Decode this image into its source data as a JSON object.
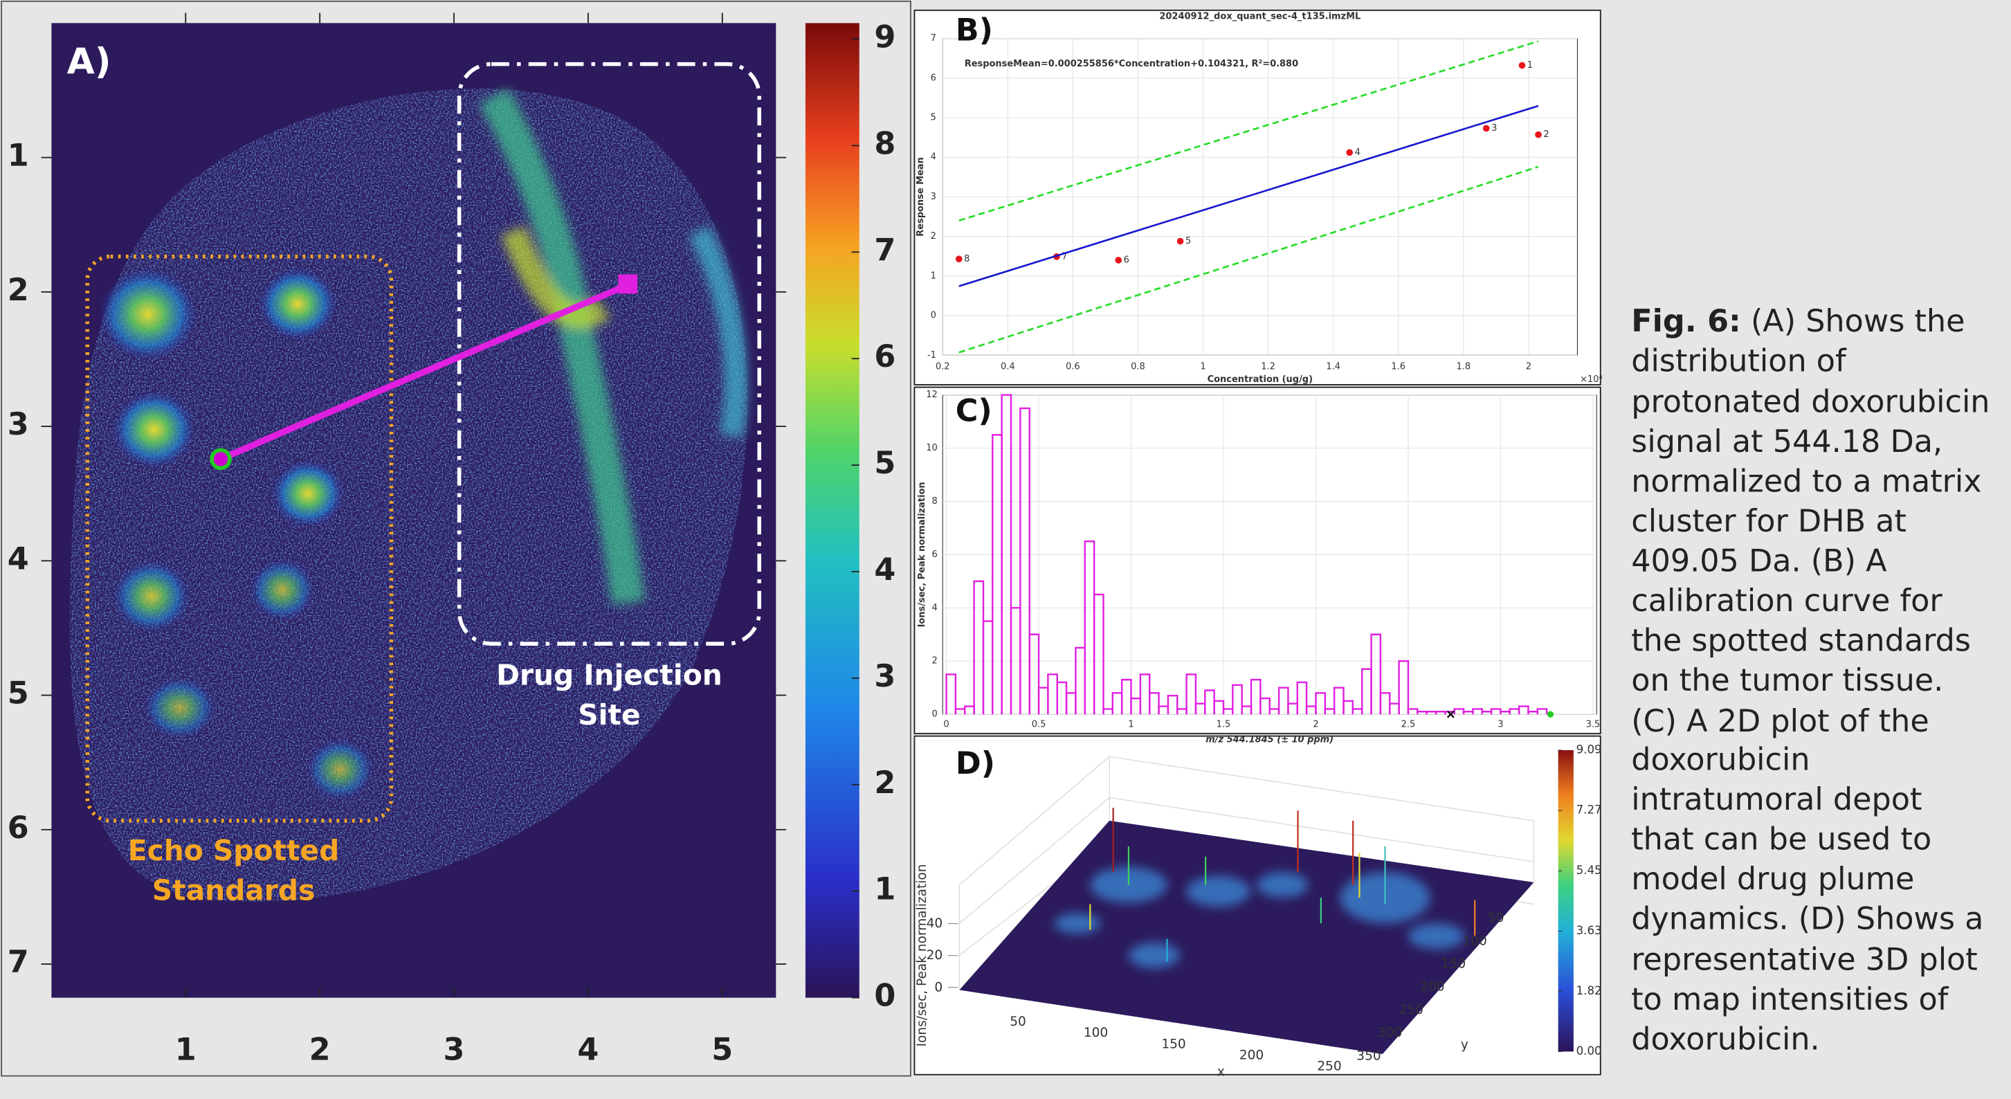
{
  "chart_data": [
    {
      "type": "heatmap",
      "label": "A)",
      "xlim": [
        0,
        5.4
      ],
      "xticks": [
        1,
        2,
        3,
        4,
        5
      ],
      "ylim": [
        0,
        7.25
      ],
      "yticks": [
        1,
        2,
        3,
        4,
        5,
        6,
        7
      ],
      "colorbar": {
        "lim": [
          0,
          9.15
        ],
        "ticks": [
          0,
          1,
          2,
          3,
          4,
          5,
          6,
          7,
          8,
          9
        ]
      },
      "annotations": {
        "injection_site": [
          "Drug Injection",
          "Site"
        ],
        "standards": [
          "Echo Spotted",
          "Standards"
        ]
      }
    },
    {
      "type": "scatter",
      "label": "B)",
      "title": "20240912_dox_quant_sec-4_t135.imzML",
      "x_label": "Concentration (ug/g)",
      "y_label": "Response Mean",
      "x_multiplier": "×10⁴",
      "equation": "ResponseMean=0.000255856*Concentration+0.104321, R²=0.880",
      "xlim": [
        0.2,
        2.15
      ],
      "xticks": [
        0.2,
        0.4,
        0.6,
        0.8,
        1,
        1.2,
        1.4,
        1.6,
        1.8,
        2
      ],
      "ylim": [
        -1,
        7
      ],
      "yticks": [
        -1,
        0,
        1,
        2,
        3,
        4,
        5,
        6,
        7
      ],
      "grid": true,
      "series": [
        {
          "style": "points",
          "color": "#e8141a",
          "x": [
            1.98,
            2.03,
            1.87,
            1.45,
            0.93,
            0.74,
            0.55,
            0.25
          ],
          "values": [
            6.32,
            4.57,
            4.73,
            4.12,
            1.88,
            1.4,
            1.49,
            1.43
          ],
          "labels": [
            "1",
            "2",
            "3",
            "4",
            "5",
            "6",
            "7",
            "8"
          ]
        },
        {
          "style": "line",
          "color": "#1515d0",
          "x": [
            0.25,
            2.03
          ],
          "values": [
            0.744,
            5.298
          ]
        },
        {
          "style": "dashed",
          "color": "#22dd22",
          "x": [
            0.25,
            2.03
          ],
          "values": [
            2.4,
            6.93
          ]
        },
        {
          "style": "dashed",
          "color": "#22dd22",
          "x": [
            0.25,
            2.03
          ],
          "values": [
            -0.93,
            3.76
          ]
        }
      ]
    },
    {
      "type": "histogram",
      "label": "C)",
      "x_label": "m/z 544.1845 (± 10 ppm)",
      "y_label": "Ions/sec, Peak normalization",
      "xlim": [
        -0.02,
        3.52
      ],
      "xticks": [
        0,
        0.5,
        1,
        1.5,
        2,
        2.5,
        3,
        3.5
      ],
      "ylim": [
        0,
        12
      ],
      "yticks": [
        0,
        2,
        4,
        6,
        8,
        10,
        12
      ],
      "grid": true,
      "color": "#e020e0",
      "bins": [
        0,
        0.05,
        0.1,
        0.15,
        0.2,
        0.25,
        0.3,
        0.35,
        0.4,
        0.45,
        0.5,
        0.55,
        0.6,
        0.65,
        0.7,
        0.75,
        0.8,
        0.85,
        0.9,
        0.95,
        1,
        1.05,
        1.1,
        1.15,
        1.2,
        1.25,
        1.3,
        1.35,
        1.4,
        1.45,
        1.5,
        1.55,
        1.6,
        1.65,
        1.7,
        1.75,
        1.8,
        1.85,
        1.9,
        1.95,
        2,
        2.05,
        2.1,
        2.15,
        2.2,
        2.25,
        2.3,
        2.35,
        2.4,
        2.45,
        2.5,
        2.55,
        2.6,
        2.65,
        2.7,
        2.75,
        2.8,
        2.85,
        2.9,
        2.95,
        3,
        3.05,
        3.1,
        3.15,
        3.2,
        3.25
      ],
      "values": [
        1.5,
        0.2,
        0.3,
        5,
        3.5,
        10.5,
        12,
        4,
        11.5,
        3,
        1,
        1.5,
        1.2,
        0.8,
        2.5,
        6.5,
        4.5,
        0.2,
        0.8,
        1.3,
        0.6,
        1.5,
        0.8,
        0.3,
        0.7,
        0.2,
        1.5,
        0.4,
        0.9,
        0.5,
        0.2,
        1.1,
        0.3,
        1.3,
        0.6,
        0.2,
        1,
        0.4,
        1.2,
        0.3,
        0.8,
        0.2,
        1,
        0.5,
        0.2,
        1.7,
        3,
        0.8,
        0.4,
        2,
        0.2,
        0.1,
        0.1,
        0.1,
        0.1,
        0.2,
        0.1,
        0.2,
        0.1,
        0.2,
        0.1,
        0.2,
        0.3,
        0.1,
        0.2
      ],
      "markers": [
        {
          "x": 2.73,
          "value": 0,
          "color": "#000000"
        },
        {
          "x": 3.27,
          "value": 0,
          "color": "#22cc22"
        }
      ]
    },
    {
      "type": "surface3d",
      "label": "D)",
      "x_label": "x",
      "y_label": "y",
      "z_label": "Ions/sec, Peak normalization",
      "xlim": [
        0,
        280
      ],
      "xticks": [
        50,
        100,
        150,
        200,
        250
      ],
      "ylim": [
        0,
        360
      ],
      "yticks": [
        50,
        100,
        150,
        200,
        250,
        300,
        350
      ],
      "zlim": [
        0,
        45
      ],
      "zticks": [
        0,
        20,
        40
      ],
      "colorbar": {
        "lim": [
          0,
          9.09
        ],
        "ticks": [
          {
            "value": 0,
            "label": "0.00"
          },
          1.82,
          3.63,
          5.45,
          7.27,
          9.09
        ]
      }
    }
  ],
  "caption": {
    "label": "Fig. 6:",
    "lines": [
      " (A) Shows the",
      "distribution of",
      "protonated doxorubicin",
      "signal at 544.18 Da,",
      "normalized to a matrix",
      "cluster for DHB at",
      "409.05 Da. (B) A",
      "calibration curve for",
      "the spotted standards",
      "on the tumor tissue.",
      "(C) A 2D plot of the",
      "doxorubicin",
      "intratumoral depot",
      "that can be used to",
      "model drug plume",
      "dynamics. (D) Shows a",
      "representative 3D plot",
      "to map intensities of",
      "doxorubicin."
    ]
  }
}
